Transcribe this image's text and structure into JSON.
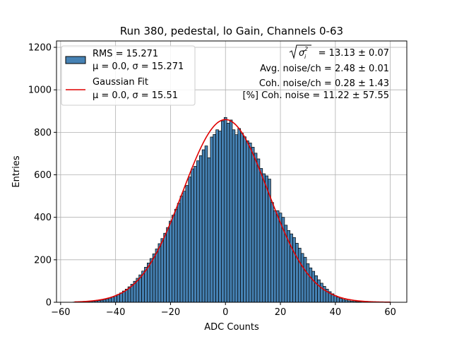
{
  "chart_data": {
    "type": "bar",
    "title": "Run 380, pedestal, lo Gain, Channels 0-63",
    "xlabel": "ADC Counts",
    "ylabel": "Entries",
    "xlim": [
      -61.5,
      66
    ],
    "ylim": [
      0,
      1230
    ],
    "xticks": [
      -60,
      -40,
      -20,
      0,
      20,
      40,
      60
    ],
    "yticks": [
      0,
      200,
      400,
      600,
      800,
      1000,
      1200
    ],
    "grid": true,
    "bin_width": 1,
    "bins": [
      [
        -55,
        1
      ],
      [
        -54,
        1
      ],
      [
        -53,
        1
      ],
      [
        -52,
        2
      ],
      [
        -51,
        2
      ],
      [
        -50,
        3
      ],
      [
        -49,
        4
      ],
      [
        -48,
        5
      ],
      [
        -47,
        6
      ],
      [
        -46,
        8
      ],
      [
        -45,
        10
      ],
      [
        -44,
        13
      ],
      [
        -43,
        16
      ],
      [
        -42,
        20
      ],
      [
        -41,
        25
      ],
      [
        -40,
        30
      ],
      [
        -39,
        37
      ],
      [
        -38,
        44
      ],
      [
        -37,
        53
      ],
      [
        -36,
        62
      ],
      [
        -35,
        73
      ],
      [
        -34,
        85
      ],
      [
        -33,
        99
      ],
      [
        -32,
        113
      ],
      [
        -31,
        129
      ],
      [
        -30,
        147
      ],
      [
        -29,
        165
      ],
      [
        -28,
        185
      ],
      [
        -27,
        206
      ],
      [
        -26,
        228
      ],
      [
        -25,
        251
      ],
      [
        -24,
        276
      ],
      [
        -23,
        300
      ],
      [
        -22,
        325
      ],
      [
        -21,
        352
      ],
      [
        -20,
        382
      ],
      [
        -19,
        410
      ],
      [
        -18,
        438
      ],
      [
        -17,
        466
      ],
      [
        -16,
        500
      ],
      [
        -15,
        523
      ],
      [
        -14,
        550
      ],
      [
        -13,
        590
      ],
      [
        -12,
        628
      ],
      [
        -11,
        640
      ],
      [
        -10,
        666
      ],
      [
        -9,
        690
      ],
      [
        -8,
        718
      ],
      [
        -7,
        736
      ],
      [
        -6,
        680
      ],
      [
        -5,
        778
      ],
      [
        -4,
        790
      ],
      [
        -3,
        812
      ],
      [
        -2,
        806
      ],
      [
        -1,
        854
      ],
      [
        0,
        870
      ],
      [
        1,
        843
      ],
      [
        2,
        858
      ],
      [
        3,
        812
      ],
      [
        4,
        789
      ],
      [
        5,
        818
      ],
      [
        6,
        796
      ],
      [
        7,
        779
      ],
      [
        8,
        760
      ],
      [
        9,
        750
      ],
      [
        10,
        730
      ],
      [
        11,
        702
      ],
      [
        12,
        675
      ],
      [
        13,
        630
      ],
      [
        14,
        605
      ],
      [
        15,
        595
      ],
      [
        16,
        580
      ],
      [
        17,
        470
      ],
      [
        18,
        431
      ],
      [
        19,
        431
      ],
      [
        20,
        420
      ],
      [
        21,
        400
      ],
      [
        22,
        363
      ],
      [
        23,
        338
      ],
      [
        24,
        322
      ],
      [
        25,
        305
      ],
      [
        26,
        278
      ],
      [
        27,
        255
      ],
      [
        28,
        230
      ],
      [
        29,
        212
      ],
      [
        30,
        182
      ],
      [
        31,
        162
      ],
      [
        32,
        146
      ],
      [
        33,
        125
      ],
      [
        34,
        106
      ],
      [
        35,
        90
      ],
      [
        36,
        75
      ],
      [
        37,
        62
      ],
      [
        38,
        50
      ],
      [
        39,
        40
      ],
      [
        40,
        31
      ],
      [
        41,
        24
      ],
      [
        42,
        18
      ],
      [
        43,
        13
      ],
      [
        44,
        10
      ],
      [
        45,
        7
      ],
      [
        46,
        5
      ],
      [
        47,
        4
      ],
      [
        48,
        3
      ],
      [
        49,
        2
      ],
      [
        50,
        1
      ],
      [
        51,
        1
      ],
      [
        52,
        1
      ]
    ],
    "fit": {
      "type": "gaussian",
      "mu": 0.0,
      "sigma": 15.51,
      "amplitude": 860,
      "x_range": [
        -55,
        60
      ]
    },
    "colors": {
      "bar_fill": "#4682b4",
      "bar_edge": "#000000",
      "fit_line": "#e00000",
      "grid": "#b0b0b0"
    },
    "legend": {
      "placement": "top-left",
      "entries": [
        {
          "kind": "patch",
          "line1": "RMS = 15.271",
          "line2": "μ = 0.0, σ = 15.271"
        },
        {
          "kind": "line",
          "line1": "Gaussian Fit",
          "line2": "μ = 0.0, σ = 15.51"
        }
      ]
    },
    "stats_box": {
      "placement": "top-right",
      "sqrt_sigma_value": "= 13.13 ± 0.07",
      "avg_noise": "Avg. noise/ch = 2.48 ± 0.01",
      "coh_noise": "Coh. noise/ch = 0.28 ± 1.43",
      "pct_coh_noise": "[%] Coh. noise = 11.22 ± 57.55"
    }
  }
}
